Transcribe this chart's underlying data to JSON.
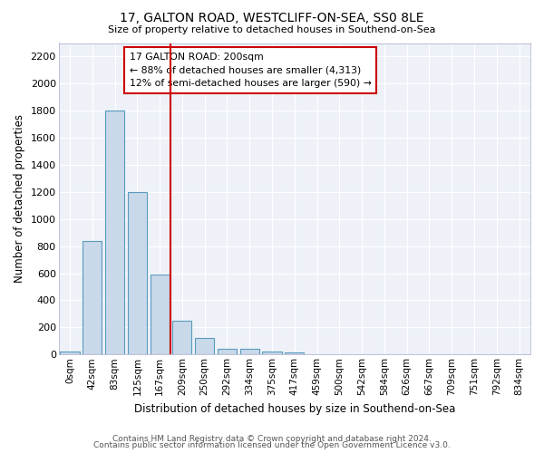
{
  "title1": "17, GALTON ROAD, WESTCLIFF-ON-SEA, SS0 8LE",
  "title2": "Size of property relative to detached houses in Southend-on-Sea",
  "xlabel": "Distribution of detached houses by size in Southend-on-Sea",
  "ylabel": "Number of detached properties",
  "bin_labels": [
    "0sqm",
    "42sqm",
    "83sqm",
    "125sqm",
    "167sqm",
    "209sqm",
    "250sqm",
    "292sqm",
    "334sqm",
    "375sqm",
    "417sqm",
    "459sqm",
    "500sqm",
    "542sqm",
    "584sqm",
    "626sqm",
    "667sqm",
    "709sqm",
    "751sqm",
    "792sqm",
    "834sqm"
  ],
  "bar_heights": [
    20,
    840,
    1800,
    1200,
    590,
    250,
    125,
    45,
    40,
    25,
    15,
    0,
    0,
    0,
    0,
    0,
    0,
    0,
    0,
    0,
    0
  ],
  "bar_color": "#c9d9ea",
  "bar_edge_color": "#5a9abe",
  "bg_color": "#ffffff",
  "plot_bg_color": "#eef2f8",
  "grid_color": "#ffffff",
  "vline_color": "#cc0000",
  "vline_x_index": 5,
  "annotation_text": "17 GALTON ROAD: 200sqm\n← 88% of detached houses are smaller (4,313)\n12% of semi-detached houses are larger (590) →",
  "annotation_box_color": "#ffffff",
  "annotation_box_edge": "#cc0000",
  "ylim": [
    0,
    2300
  ],
  "yticks": [
    0,
    200,
    400,
    600,
    800,
    1000,
    1200,
    1400,
    1600,
    1800,
    2000,
    2200
  ],
  "footer1": "Contains HM Land Registry data © Crown copyright and database right 2024.",
  "footer2": "Contains public sector information licensed under the Open Government Licence v3.0."
}
